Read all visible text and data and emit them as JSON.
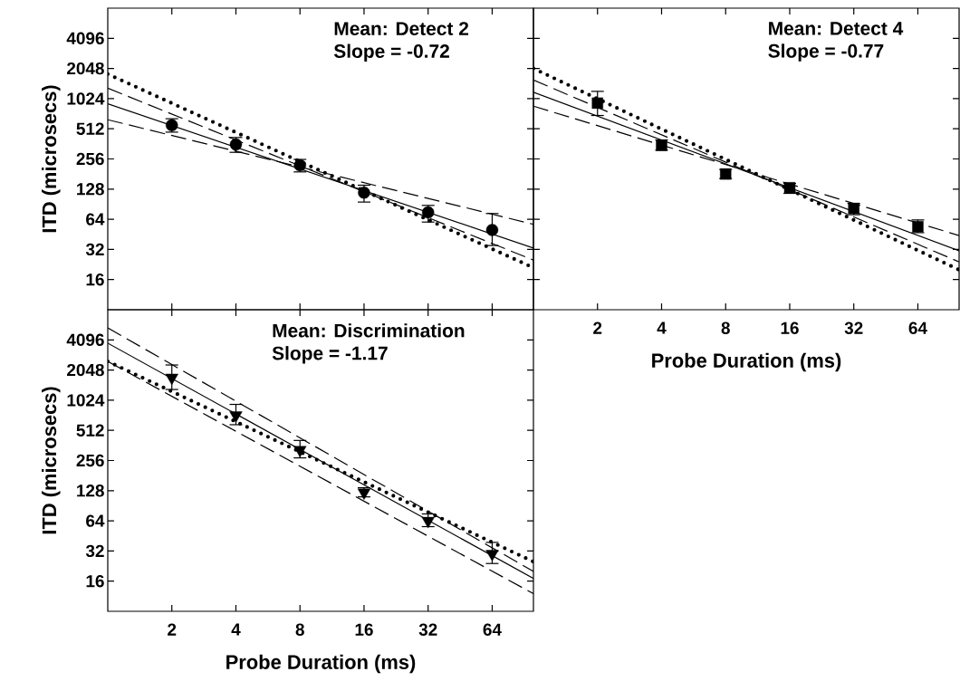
{
  "chart_data": [
    {
      "type": "scatter",
      "ylabel": "ITD (microsecs)",
      "annotations": [
        "Mean: Detect 2",
        "Slope = -0.72"
      ],
      "xlim": [
        1,
        100
      ],
      "ylim": [
        8,
        8192
      ],
      "xticks": [
        2,
        4,
        8,
        16,
        32,
        64
      ],
      "yticks": [
        16,
        32,
        64,
        128,
        256,
        512,
        1024,
        2048,
        4096
      ],
      "log": "xy",
      "tick_labels": "y",
      "series": [
        {
          "marker": "circle",
          "color": "#000000",
          "x": [
            2,
            4,
            8,
            16,
            32,
            64
          ],
          "values": [
            556,
            357,
            221,
            118,
            75,
            50
          ],
          "errors": [
            [
              474,
              645
            ],
            [
              298,
              419
            ],
            [
              190,
              253
            ],
            [
              95,
              140
            ],
            [
              60,
              88
            ],
            [
              35,
              73
            ]
          ]
        },
        {
          "type": "line",
          "line_style": "solid",
          "color": "#000000",
          "x": [
            1,
            100
          ],
          "values": [
            908,
            33
          ]
        },
        {
          "type": "line",
          "line_style": "dashed",
          "color": "#000000",
          "x": [
            1,
            100
          ],
          "values": [
            1300,
            25
          ]
        },
        {
          "type": "line",
          "line_style": "dashed",
          "color": "#000000",
          "x": [
            1,
            100
          ],
          "values": [
            630,
            57
          ]
        },
        {
          "type": "line",
          "line_style": "dotted",
          "color": "#000000",
          "x": [
            1,
            100
          ],
          "values": [
            1800,
            21
          ]
        }
      ]
    },
    {
      "type": "scatter",
      "xlabel": "Probe Duration (ms)",
      "annotations": [
        "Mean: Detect 4",
        "Slope = -0.77"
      ],
      "xlim": [
        1,
        100
      ],
      "ylim": [
        8,
        8192
      ],
      "xticks": [
        2,
        4,
        8,
        16,
        32,
        64
      ],
      "yticks": [
        16,
        32,
        64,
        128,
        256,
        512,
        1024,
        2048,
        4096
      ],
      "log": "xy",
      "tick_labels": "x",
      "series": [
        {
          "marker": "square",
          "color": "#000000",
          "x": [
            2,
            4,
            8,
            16,
            32,
            64
          ],
          "values": [
            923,
            350,
            181,
            132,
            82,
            54
          ],
          "errors": [
            [
              695,
              1210
            ],
            [
              313,
              396
            ],
            [
              163,
              201
            ],
            [
              116,
              146
            ],
            [
              71,
              92
            ],
            [
              47,
              63
            ]
          ]
        },
        {
          "type": "line",
          "line_style": "solid",
          "color": "#000000",
          "x": [
            1,
            100
          ],
          "values": [
            1185,
            31
          ]
        },
        {
          "type": "line",
          "line_style": "dashed",
          "color": "#000000",
          "x": [
            1,
            100
          ],
          "values": [
            1570,
            24
          ]
        },
        {
          "type": "line",
          "line_style": "dashed",
          "color": "#000000",
          "x": [
            1,
            100
          ],
          "values": [
            861,
            44
          ]
        },
        {
          "type": "line",
          "line_style": "dotted",
          "color": "#000000",
          "x": [
            1,
            100
          ],
          "values": [
            2048,
            20
          ]
        }
      ]
    },
    {
      "type": "scatter",
      "xlabel": "Probe Duration (ms)",
      "ylabel": "ITD (microsecs)",
      "annotations": [
        "Mean: Discrimination",
        "Slope = -1.17"
      ],
      "xlim": [
        1,
        100
      ],
      "ylim": [
        8,
        8192
      ],
      "xticks": [
        2,
        4,
        8,
        16,
        32,
        64
      ],
      "yticks": [
        16,
        32,
        64,
        128,
        256,
        512,
        1024,
        2048,
        4096
      ],
      "log": "xy",
      "series": [
        {
          "marker": "triangle",
          "color": "#000000",
          "x": [
            2,
            4,
            8,
            16,
            32,
            64
          ],
          "values": [
            1722,
            724,
            327,
            123,
            64,
            30
          ],
          "errors": [
            [
              1310,
              2300
            ],
            [
              583,
              930
            ],
            [
              272,
              406
            ],
            [
              111,
              137
            ],
            [
              56,
              75
            ],
            [
              24,
              39
            ]
          ]
        },
        {
          "type": "line",
          "line_style": "solid",
          "color": "#000000",
          "x": [
            1,
            100
          ],
          "values": [
            3800,
            17
          ]
        },
        {
          "type": "line",
          "line_style": "dashed",
          "color": "#000000",
          "x": [
            1,
            100
          ],
          "values": [
            5400,
            20
          ]
        },
        {
          "type": "line",
          "line_style": "dashed",
          "color": "#000000",
          "x": [
            1,
            100
          ],
          "values": [
            2500,
            12
          ]
        },
        {
          "type": "line",
          "line_style": "dotted",
          "color": "#000000",
          "x": [
            1,
            100
          ],
          "values": [
            2500,
            25
          ]
        }
      ]
    }
  ]
}
